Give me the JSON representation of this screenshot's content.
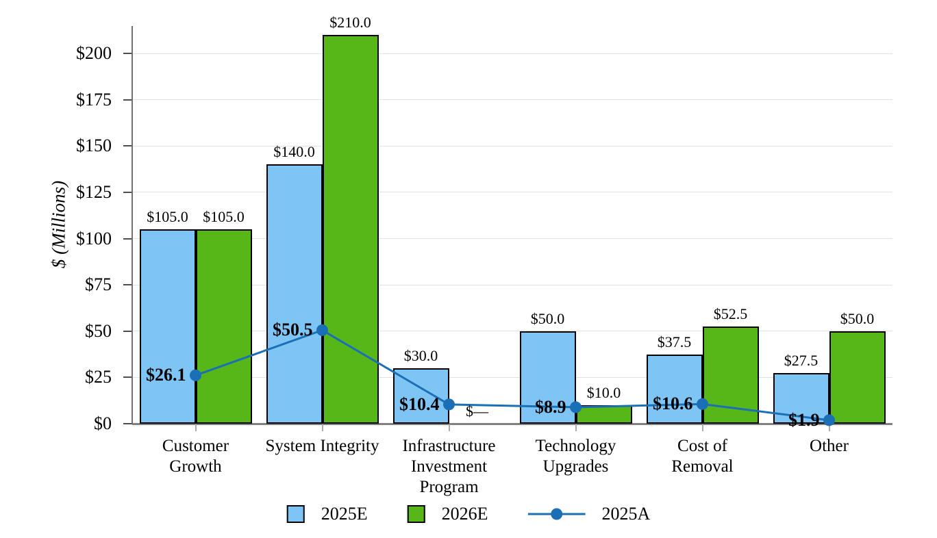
{
  "chart_data": {
    "type": "bar",
    "overlay_series_type": "line",
    "title": "",
    "xlabel": "",
    "ylabel": "$ (Millions)",
    "categories": [
      "Customer Growth",
      "System Integrity",
      "Infrastructure Investment Program",
      "Technology Upgrades",
      "Cost of Removal",
      "Other"
    ],
    "category_label_lines": [
      [
        "Customer",
        "Growth"
      ],
      [
        "System Integrity"
      ],
      [
        "Infrastructure",
        "Investment",
        "Program"
      ],
      [
        "Technology",
        "Upgrades"
      ],
      [
        "Cost of",
        "Removal"
      ],
      [
        "Other"
      ]
    ],
    "series": [
      {
        "name": "2025E",
        "type": "bar",
        "color": "#7ec4f4",
        "values": [
          105.0,
          140.0,
          30.0,
          50.0,
          37.5,
          27.5
        ],
        "labels": [
          "$105.0",
          "$140.0",
          "$30.0",
          "$50.0",
          "$37.5",
          "$27.5"
        ]
      },
      {
        "name": "2026E",
        "type": "bar",
        "color": "#57b618",
        "values": [
          105.0,
          210.0,
          0,
          10.0,
          52.5,
          50.0
        ],
        "labels": [
          "$105.0",
          "$210.0",
          "$—",
          "$10.0",
          "$52.5",
          "$50.0"
        ]
      },
      {
        "name": "2025A",
        "type": "line",
        "color": "#1a6fb5",
        "values": [
          26.1,
          50.5,
          10.4,
          8.9,
          10.6,
          1.9
        ],
        "labels": [
          "$26.1",
          "$50.5",
          "$10.4",
          "$8.9",
          "$10.6",
          "$1.9"
        ]
      }
    ],
    "y_tick_values": [
      0,
      25,
      50,
      75,
      100,
      125,
      150,
      175,
      200
    ],
    "y_tick_labels": [
      "$0",
      "$25",
      "$50",
      "$75",
      "$100",
      "$125",
      "$150",
      "$175",
      "$200"
    ],
    "ylim": [
      0,
      215
    ],
    "grid": true,
    "legend_position": "bottom"
  }
}
